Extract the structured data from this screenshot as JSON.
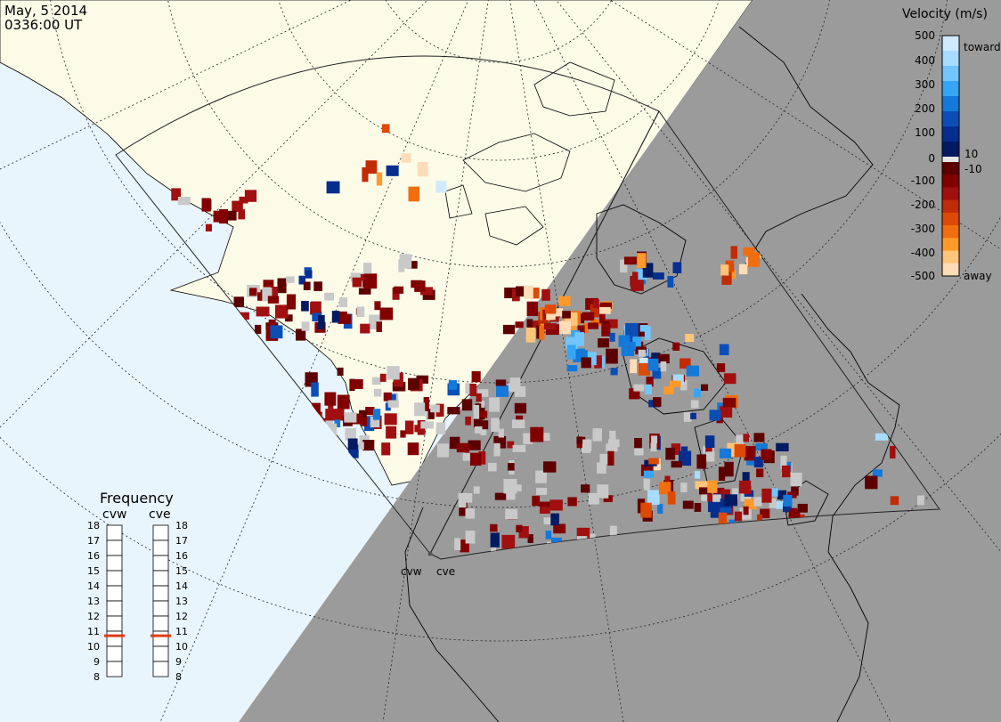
{
  "header": {
    "date": "May, 5 2014",
    "time": "0336:00 UT"
  },
  "colorbar": {
    "title": "Velocity (m/s)",
    "ticks": [
      "500",
      "400",
      "300",
      "200",
      "100",
      "10",
      "0",
      "-10",
      "-100",
      "-200",
      "-300",
      "-400",
      "-500"
    ],
    "toward_label": "toward",
    "away_label": "away",
    "colors": {
      "toward": [
        "#cfeaff",
        "#a8dcff",
        "#72c6ff",
        "#36a5f5",
        "#1479d8",
        "#0b4fb6",
        "#062e8f",
        "#021a62"
      ],
      "away": [
        "#5d0000",
        "#830000",
        "#a01010",
        "#c02c06",
        "#dd4a04",
        "#f06e10",
        "#ff9a2a",
        "#ffc57a",
        "#ffdcb8"
      ],
      "ground_scatter": "#c9c9c9"
    }
  },
  "radars": {
    "west": "cvw",
    "east": "cve"
  },
  "frequency": {
    "title": "Frequency",
    "west_label": "cvw",
    "east_label": "cve",
    "scale": [
      "18",
      "17",
      "16",
      "15",
      "14",
      "13",
      "12",
      "11",
      "10",
      "9",
      "8"
    ],
    "west_value_mhz": 10.7,
    "east_value_mhz": 10.7
  }
}
